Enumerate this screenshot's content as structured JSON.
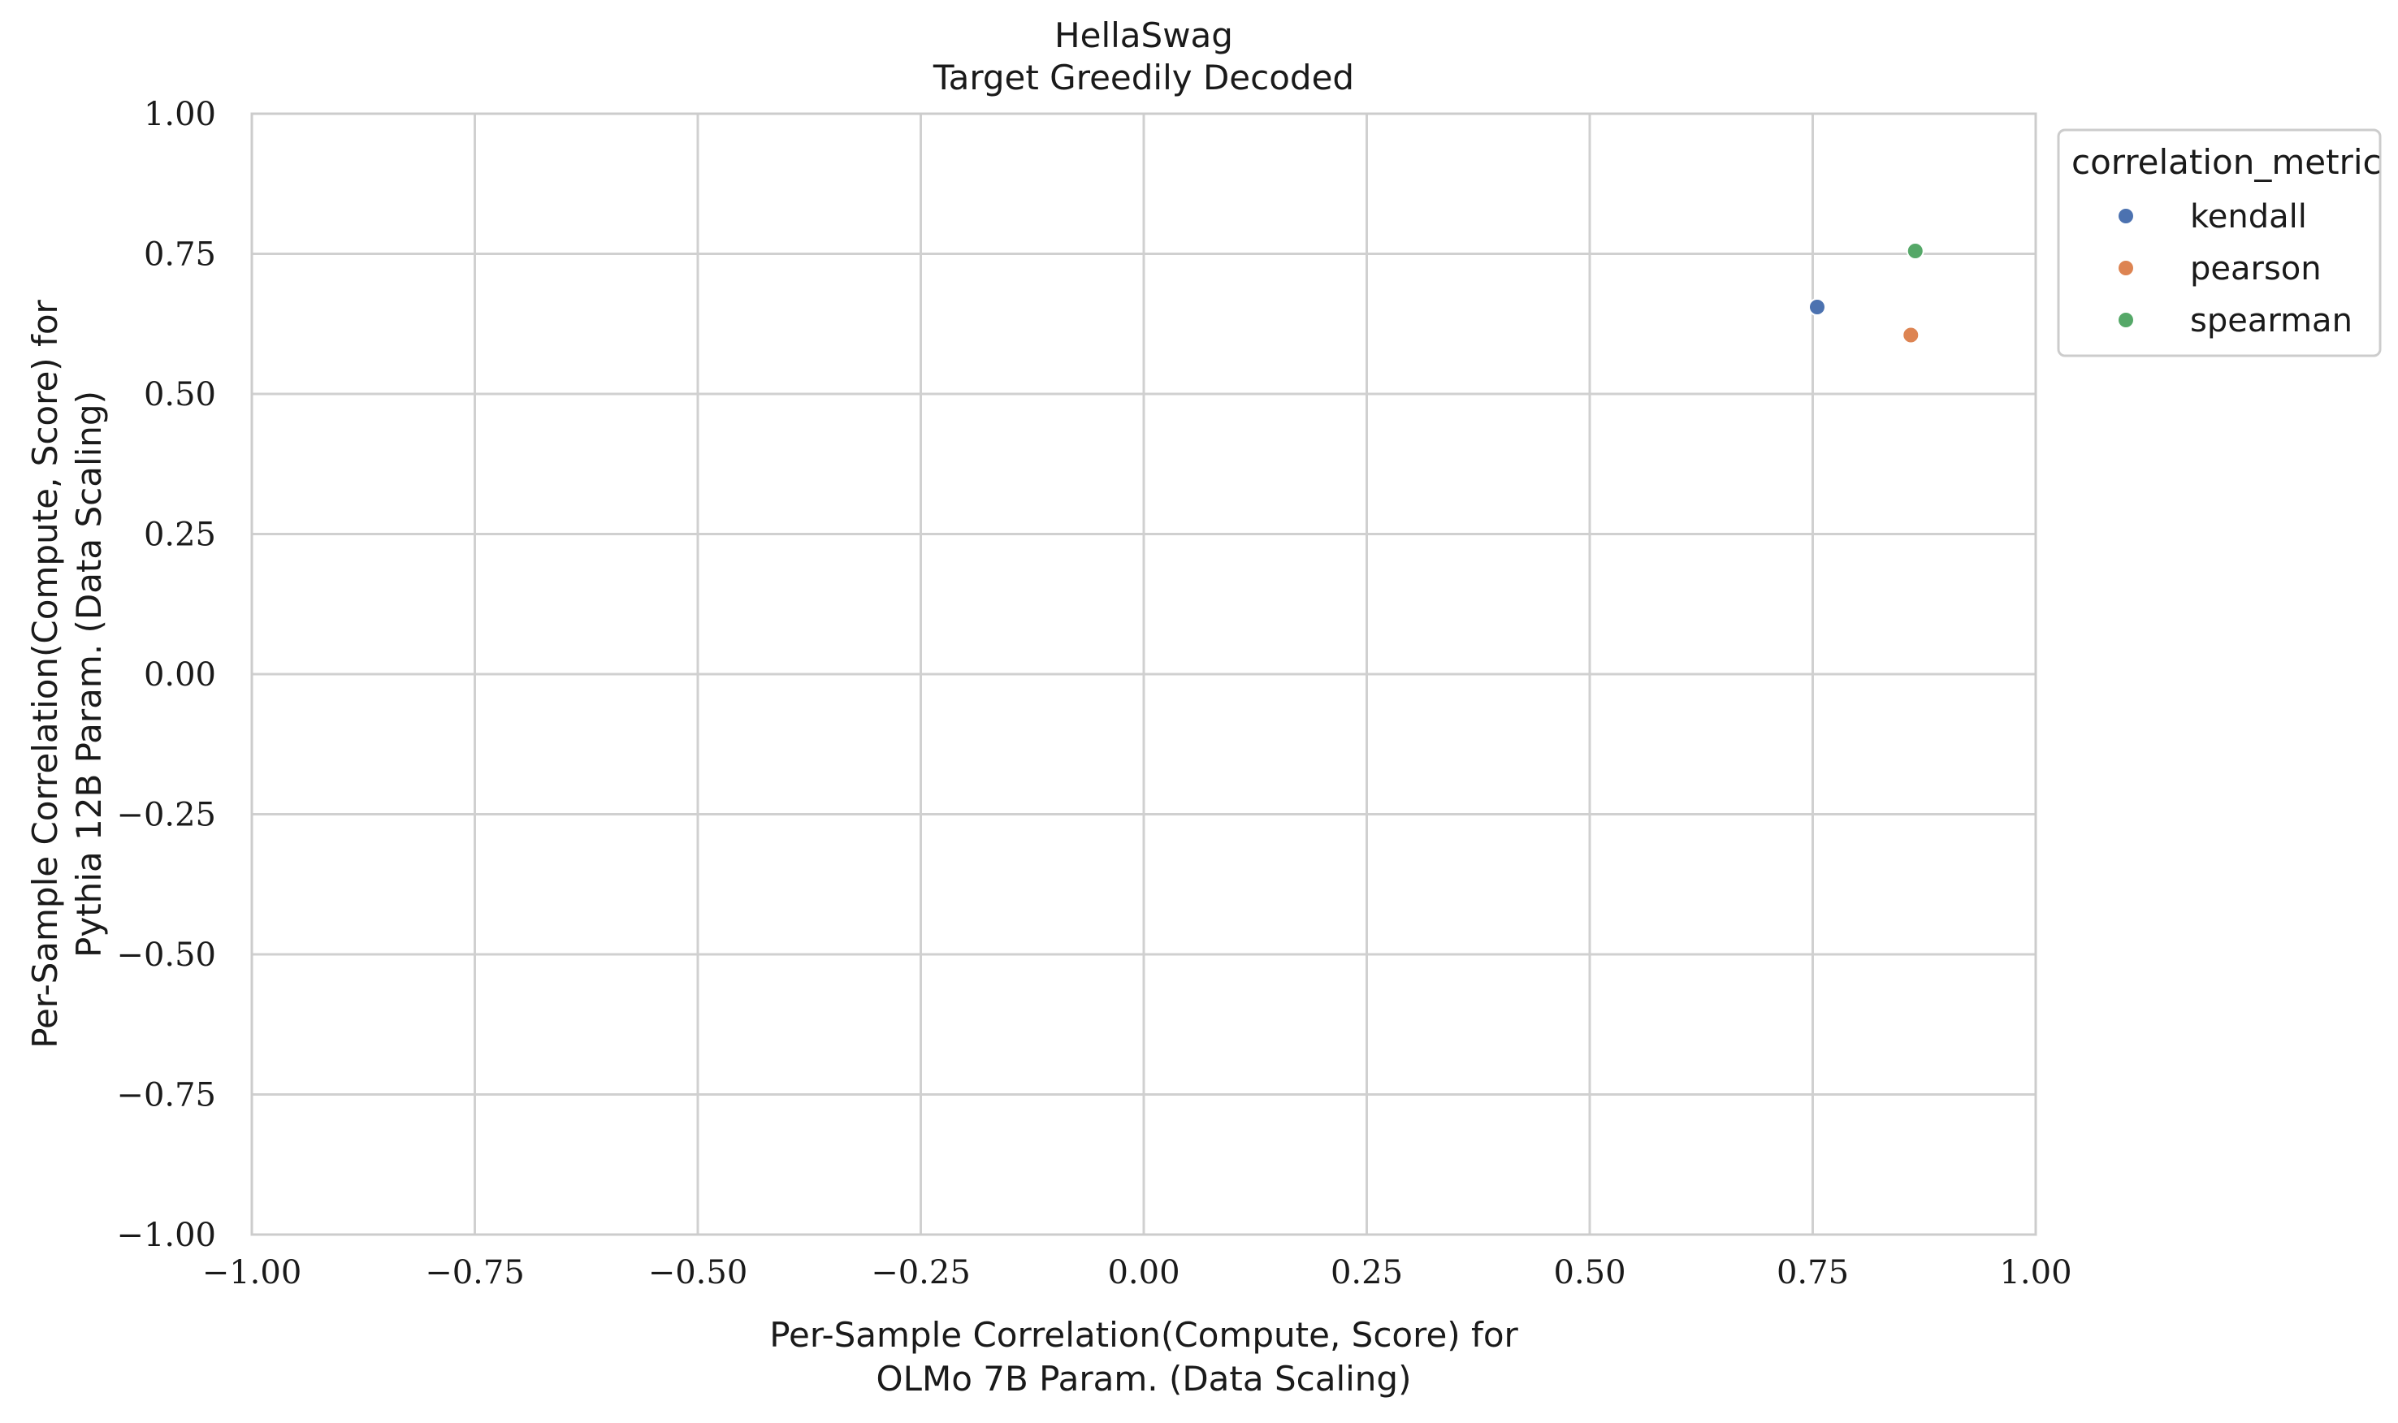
{
  "chart_data": {
    "type": "scatter",
    "title": "HellaSwag",
    "subtitle": "Target Greedily Decoded",
    "xlabel": [
      "Per-Sample Correlation(Compute, Score) for",
      "OLMo 7B Param. (Data Scaling)"
    ],
    "ylabel": [
      "Per-Sample Correlation(Compute, Score) for",
      "Pythia 12B Param. (Data Scaling)"
    ],
    "xlim": [
      -1.0,
      1.0
    ],
    "ylim": [
      -1.0,
      1.0
    ],
    "xticks": [
      -1.0,
      -0.75,
      -0.5,
      -0.25,
      0.0,
      0.25,
      0.5,
      0.75,
      1.0
    ],
    "yticks": [
      -1.0,
      -0.75,
      -0.5,
      -0.25,
      0.0,
      0.25,
      0.5,
      0.75,
      1.0
    ],
    "xtick_labels": [
      "−1.00",
      "−0.75",
      "−0.50",
      "−0.25",
      "0.00",
      "0.25",
      "0.50",
      "0.75",
      "1.00"
    ],
    "ytick_labels": [
      "−1.00",
      "−0.75",
      "−0.50",
      "−0.25",
      "0.00",
      "0.25",
      "0.50",
      "0.75",
      "1.00"
    ],
    "grid": true,
    "legend": {
      "title": "correlation_metric",
      "placement": "outside-top-right"
    },
    "series": [
      {
        "name": "kendall",
        "color": "#4c72b0",
        "points": [
          {
            "x": 0.755,
            "y": 0.655
          }
        ]
      },
      {
        "name": "pearson",
        "color": "#dd8452",
        "points": [
          {
            "x": 0.86,
            "y": 0.605
          }
        ]
      },
      {
        "name": "spearman",
        "color": "#55a868",
        "points": [
          {
            "x": 0.865,
            "y": 0.755
          }
        ]
      }
    ]
  }
}
